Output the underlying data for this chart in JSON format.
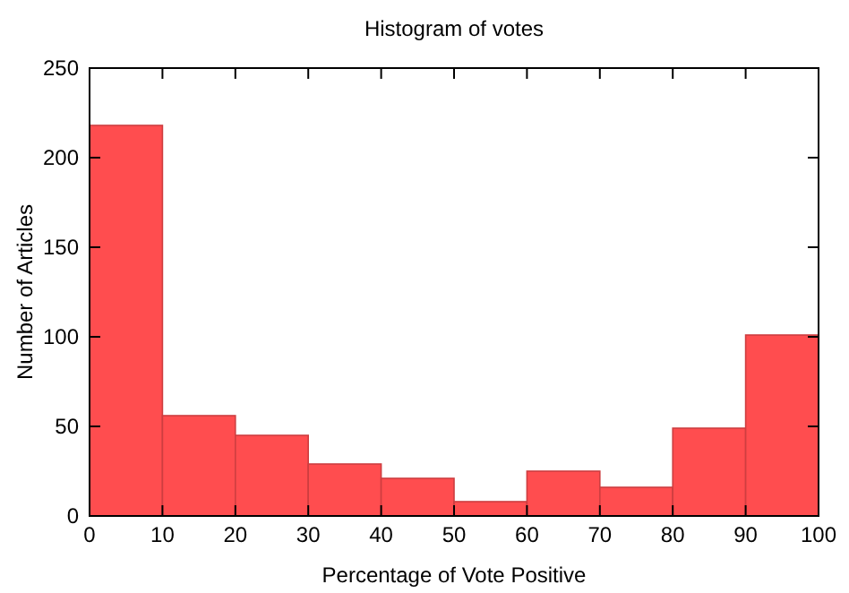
{
  "chart_data": {
    "type": "histogram",
    "title": "Histogram of votes",
    "xlabel": "Percentage of Vote Positive",
    "ylabel": "Number of Articles",
    "bins": [
      0,
      10,
      20,
      30,
      40,
      50,
      60,
      70,
      80,
      90,
      100
    ],
    "values": [
      218,
      56,
      45,
      29,
      21,
      8,
      25,
      16,
      49,
      101
    ],
    "color": "#ff4d4f",
    "xlim": [
      0,
      100
    ],
    "xticks": [
      0,
      10,
      20,
      30,
      40,
      50,
      60,
      70,
      80,
      90,
      100
    ],
    "ylim": [
      0,
      250
    ],
    "yticks": [
      0,
      50,
      100,
      150,
      200,
      250
    ],
    "grid": false
  }
}
